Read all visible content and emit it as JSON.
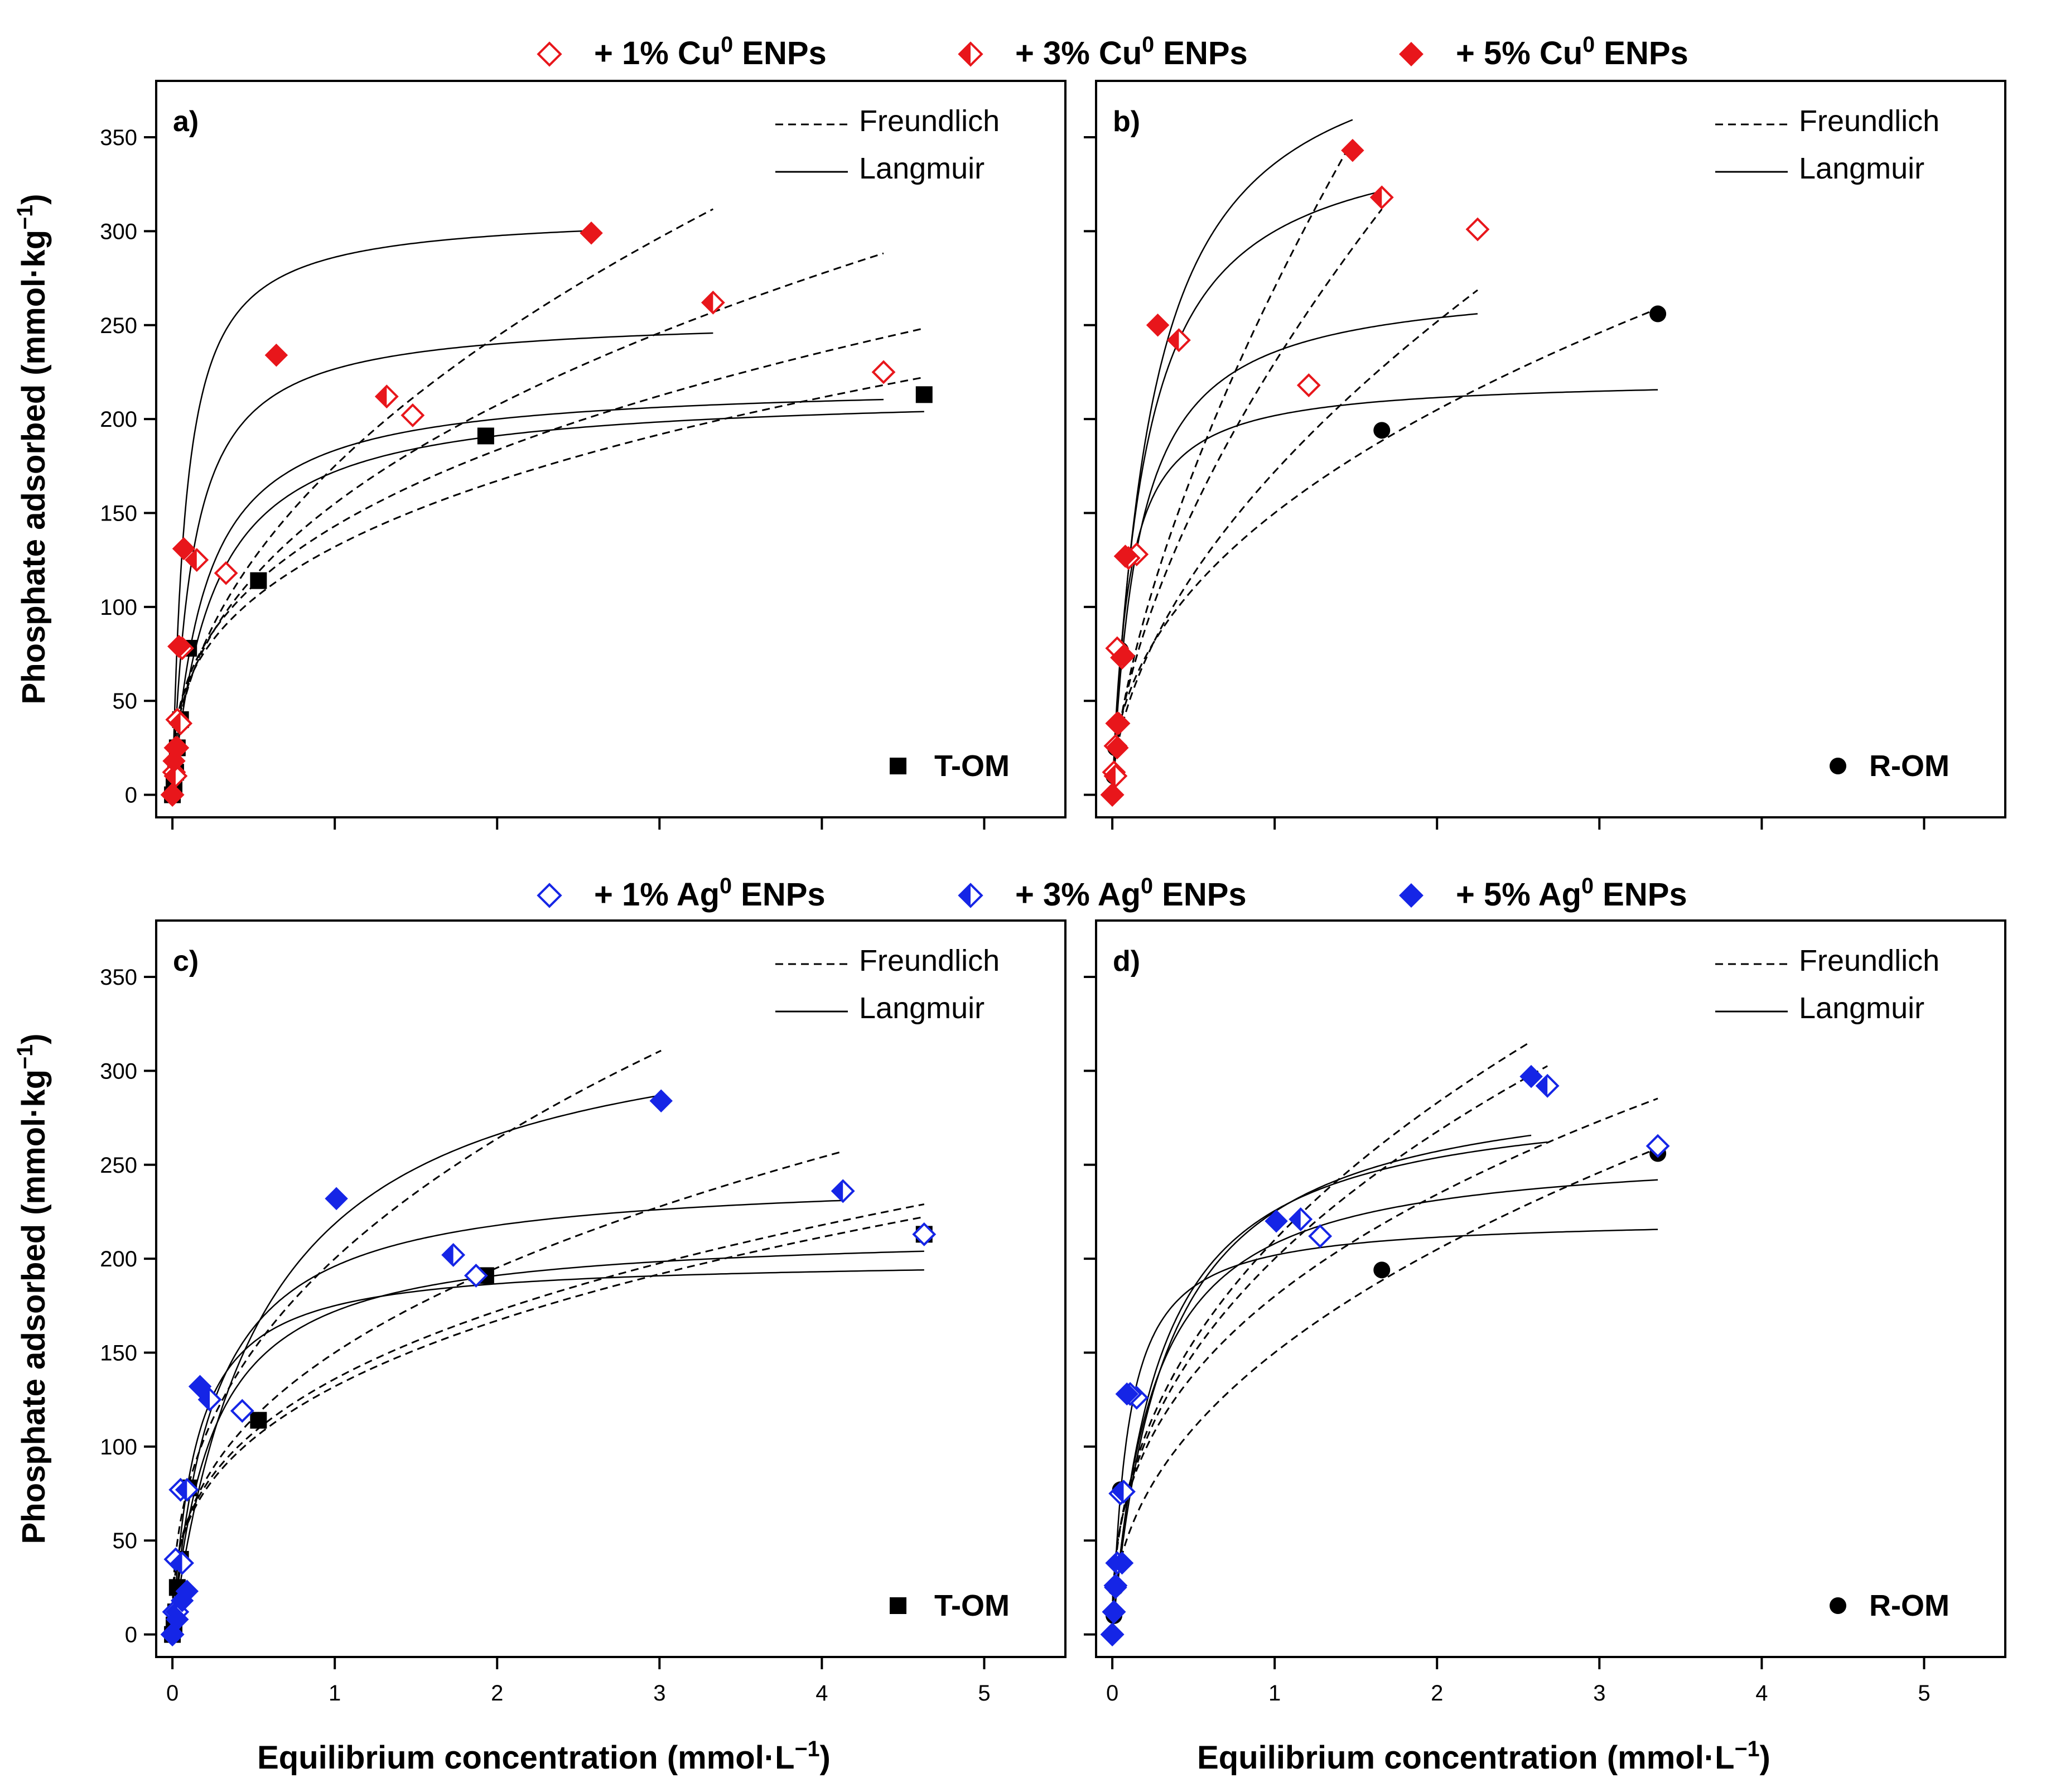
{
  "chart_data": [
    {
      "type": "scatter",
      "panel_label": "a)",
      "sample_label": "T-OM",
      "ylabel": "Phosphate adsorbed (mmol·kg",
      "ylabel_sup": "−1",
      "ylabel_close": ")",
      "xlabel": "",
      "xlim": [
        -0.1,
        5.5
      ],
      "ylim": [
        -12,
        380
      ],
      "xticks": [
        0,
        1,
        2,
        3,
        4,
        5
      ],
      "xtick_labels": [],
      "yticks": [
        0,
        50,
        100,
        150,
        200,
        250,
        300,
        350
      ],
      "ytick_labels": [
        "0",
        "50",
        "100",
        "150",
        "200",
        "250",
        "300",
        "350"
      ],
      "fit_legend": [
        {
          "name": "Freundlich",
          "style": "dashed"
        },
        {
          "name": "Langmuir",
          "style": "solid"
        }
      ],
      "series": [
        {
          "name": "T-OM",
          "marker": "square",
          "fill": "full",
          "color": "#000000",
          "x": [
            0.0,
            0.01,
            0.02,
            0.03,
            0.05,
            0.1,
            0.53,
            1.93,
            4.63
          ],
          "y": [
            0,
            5,
            12,
            25,
            40,
            78,
            114,
            191,
            213
          ],
          "freundlich": {
            "kf": 132,
            "n": 0.34,
            "xmax": 4.63
          },
          "langmuir": {
            "qmax": 215,
            "kl": 4.0,
            "xmax": 4.63
          }
        },
        {
          "name": "+ 1% Cu ENPs",
          "marker": "diamond",
          "fill": "none",
          "color": "#e8161b",
          "x": [
            0.0,
            0.01,
            0.02,
            0.03,
            0.06,
            0.33,
            1.48,
            4.38
          ],
          "y": [
            0,
            12,
            25,
            40,
            78,
            118,
            202,
            225
          ],
          "freundlich": {
            "kf": 143,
            "n": 0.36,
            "xmax": 4.63
          },
          "langmuir": {
            "qmax": 220,
            "kl": 5.0,
            "xmax": 4.38
          }
        },
        {
          "name": "+ 3% Cu ENPs",
          "marker": "diamond",
          "fill": "half",
          "color": "#e8161b",
          "x": [
            0.0,
            0.02,
            0.03,
            0.05,
            0.15,
            1.32,
            3.33
          ],
          "y": [
            0,
            10,
            25,
            38,
            125,
            212,
            262
          ],
          "freundlich": {
            "kf": 155,
            "n": 0.42,
            "xmax": 4.38
          },
          "langmuir": {
            "qmax": 255,
            "kl": 8.0,
            "xmax": 3.33
          }
        },
        {
          "name": "+ 5% Cu ENPs",
          "marker": "diamond",
          "fill": "full",
          "color": "#e8161b",
          "x": [
            0.0,
            0.01,
            0.02,
            0.04,
            0.07,
            0.64,
            2.58
          ],
          "y": [
            0,
            18,
            25,
            79,
            131,
            234,
            299
          ],
          "freundlich": {
            "kf": 175,
            "n": 0.48,
            "xmax": 3.33
          },
          "langmuir": {
            "qmax": 310,
            "kl": 12.0,
            "xmax": 2.58
          }
        }
      ]
    },
    {
      "type": "scatter",
      "panel_label": "b)",
      "sample_label": "R-OM",
      "ylabel": "",
      "xlabel": "",
      "xlim": [
        -0.1,
        5.5
      ],
      "ylim": [
        -12,
        380
      ],
      "xticks": [
        0,
        1,
        2,
        3,
        4,
        5
      ],
      "xtick_labels": [],
      "yticks": [
        0,
        50,
        100,
        150,
        200,
        250,
        300,
        350
      ],
      "ytick_labels": [],
      "fit_legend": [
        {
          "name": "Freundlich",
          "style": "dashed"
        },
        {
          "name": "Langmuir",
          "style": "solid"
        }
      ],
      "series": [
        {
          "name": "R-OM",
          "marker": "circle",
          "fill": "full",
          "color": "#000000",
          "x": [
            0.0,
            0.01,
            0.02,
            0.03,
            0.05,
            1.66,
            3.36
          ],
          "y": [
            0,
            10,
            25,
            38,
            77,
            194,
            256
          ],
          "freundlich": {
            "kf": 150,
            "n": 0.45,
            "xmax": 3.36
          },
          "langmuir": {
            "qmax": 222,
            "kl": 10.0,
            "xmax": 3.36
          }
        },
        {
          "name": "+ 1% Cu ENPs",
          "marker": "diamond",
          "fill": "none",
          "color": "#e8161b",
          "x": [
            0.0,
            0.01,
            0.02,
            0.03,
            0.15,
            1.21,
            2.25
          ],
          "y": [
            0,
            12,
            26,
            78,
            128,
            218,
            301
          ],
          "freundlich": {
            "kf": 172,
            "n": 0.55,
            "xmax": 2.25
          },
          "langmuir": {
            "qmax": 275,
            "kl": 6.0,
            "xmax": 2.25
          }
        },
        {
          "name": "+ 3% Cu ENPs",
          "marker": "diamond",
          "fill": "half",
          "color": "#e8161b",
          "x": [
            0.0,
            0.02,
            0.03,
            0.06,
            0.1,
            0.41,
            1.66
          ],
          "y": [
            0,
            10,
            38,
            73,
            126,
            242,
            318
          ],
          "freundlich": {
            "kf": 230,
            "n": 0.6,
            "xmax": 1.66
          },
          "langmuir": {
            "qmax": 360,
            "kl": 5.0,
            "xmax": 1.66
          }
        },
        {
          "name": "+ 5% Cu ENPs",
          "marker": "diamond",
          "fill": "full",
          "color": "#e8161b",
          "x": [
            0.0,
            0.03,
            0.04,
            0.07,
            0.08,
            0.28,
            1.48
          ],
          "y": [
            0,
            25,
            38,
            74,
            127,
            250,
            343
          ],
          "freundlich": {
            "kf": 270,
            "n": 0.65,
            "xmax": 1.48
          },
          "langmuir": {
            "qmax": 420,
            "kl": 4.0,
            "xmax": 1.48
          }
        }
      ]
    },
    {
      "type": "scatter",
      "panel_label": "c)",
      "sample_label": "T-OM",
      "ylabel": "Phosphate adsorbed (mmol·kg",
      "ylabel_sup": "−1",
      "ylabel_close": ")",
      "xlabel": "Equilibrium concentration (mmol·L",
      "xlabel_sup": "−1",
      "xlabel_close": ")",
      "xlim": [
        -0.1,
        5.5
      ],
      "ylim": [
        -12,
        380
      ],
      "xticks": [
        0,
        1,
        2,
        3,
        4,
        5
      ],
      "xtick_labels": [
        "0",
        "1",
        "2",
        "3",
        "4",
        "5"
      ],
      "yticks": [
        0,
        50,
        100,
        150,
        200,
        250,
        300,
        350
      ],
      "ytick_labels": [
        "0",
        "50",
        "100",
        "150",
        "200",
        "250",
        "300",
        "350"
      ],
      "fit_legend": [
        {
          "name": "Freundlich",
          "style": "dashed"
        },
        {
          "name": "Langmuir",
          "style": "solid"
        }
      ],
      "series": [
        {
          "name": "T-OM",
          "marker": "square",
          "fill": "full",
          "color": "#000000",
          "x": [
            0.0,
            0.01,
            0.02,
            0.03,
            0.05,
            0.1,
            0.53,
            1.93,
            4.63
          ],
          "y": [
            0,
            5,
            12,
            25,
            40,
            78,
            114,
            191,
            213
          ],
          "freundlich": {
            "kf": 132,
            "n": 0.34,
            "xmax": 4.63
          },
          "langmuir": {
            "qmax": 215,
            "kl": 4.0,
            "xmax": 4.63
          }
        },
        {
          "name": "+ 1% Ag ENPs",
          "marker": "diamond",
          "fill": "none",
          "color": "#1525e6",
          "x": [
            0.0,
            0.01,
            0.02,
            0.05,
            0.43,
            1.87,
            4.63
          ],
          "y": [
            0,
            12,
            40,
            77,
            119,
            191,
            213
          ],
          "freundlich": {
            "kf": 136,
            "n": 0.34,
            "xmax": 4.63
          },
          "langmuir": {
            "qmax": 200,
            "kl": 7.0,
            "xmax": 4.63
          }
        },
        {
          "name": "+ 3% Ag ENPs",
          "marker": "diamond",
          "fill": "half",
          "color": "#1525e6",
          "x": [
            0.0,
            0.03,
            0.06,
            0.09,
            0.23,
            1.73,
            4.13
          ],
          "y": [
            0,
            12,
            38,
            77,
            125,
            202,
            236
          ],
          "freundlich": {
            "kf": 150,
            "n": 0.38,
            "xmax": 4.13
          },
          "langmuir": {
            "qmax": 245,
            "kl": 4.0,
            "xmax": 4.13
          }
        },
        {
          "name": "+ 5% Ag ENPs",
          "marker": "diamond",
          "fill": "full",
          "color": "#1525e6",
          "x": [
            0.0,
            0.03,
            0.06,
            0.09,
            0.17,
            1.01,
            3.01
          ],
          "y": [
            0,
            8,
            18,
            23,
            132,
            232,
            284
          ],
          "freundlich": {
            "kf": 200,
            "n": 0.4,
            "xmax": 3.01
          },
          "langmuir": {
            "qmax": 340,
            "kl": 1.8,
            "xmax": 3.01
          }
        }
      ]
    },
    {
      "type": "scatter",
      "panel_label": "d)",
      "sample_label": "R-OM",
      "ylabel": "",
      "xlabel": "Equilibrium concentration (mmol·L",
      "xlabel_sup": "−1",
      "xlabel_close": ")",
      "xlim": [
        -0.1,
        5.5
      ],
      "ylim": [
        -12,
        380
      ],
      "xticks": [
        0,
        1,
        2,
        3,
        4,
        5
      ],
      "xtick_labels": [
        "0",
        "1",
        "2",
        "3",
        "4",
        "5"
      ],
      "yticks": [
        0,
        50,
        100,
        150,
        200,
        250,
        300,
        350
      ],
      "ytick_labels": [],
      "fit_legend": [
        {
          "name": "Freundlich",
          "style": "dashed"
        },
        {
          "name": "Langmuir",
          "style": "solid"
        }
      ],
      "series": [
        {
          "name": "R-OM",
          "marker": "circle",
          "fill": "full",
          "color": "#000000",
          "x": [
            0.0,
            0.01,
            0.02,
            0.03,
            0.05,
            1.66,
            3.36
          ],
          "y": [
            0,
            10,
            25,
            38,
            77,
            194,
            256
          ],
          "freundlich": {
            "kf": 150,
            "n": 0.45,
            "xmax": 3.36
          },
          "langmuir": {
            "qmax": 222,
            "kl": 10.0,
            "xmax": 3.36
          }
        },
        {
          "name": "+ 1% Ag ENPs",
          "marker": "diamond",
          "fill": "none",
          "color": "#1525e6",
          "x": [
            0.0,
            0.01,
            0.02,
            0.05,
            0.15,
            1.28,
            3.36
          ],
          "y": [
            0,
            12,
            26,
            75,
            126,
            212,
            260
          ],
          "freundlich": {
            "kf": 180,
            "n": 0.38,
            "xmax": 3.36
          },
          "langmuir": {
            "qmax": 260,
            "kl": 4.0,
            "xmax": 3.36
          }
        },
        {
          "name": "+ 3% Ag ENPs",
          "marker": "diamond",
          "fill": "half",
          "color": "#1525e6",
          "x": [
            0.0,
            0.01,
            0.03,
            0.07,
            0.11,
            1.16,
            2.68
          ],
          "y": [
            0,
            12,
            38,
            76,
            128,
            221,
            292
          ],
          "freundlich": {
            "kf": 200,
            "n": 0.42,
            "xmax": 2.68
          },
          "langmuir": {
            "qmax": 290,
            "kl": 3.5,
            "xmax": 2.68
          }
        },
        {
          "name": "+ 5% Ag ENPs",
          "marker": "diamond",
          "fill": "full",
          "color": "#1525e6",
          "x": [
            0.0,
            0.01,
            0.02,
            0.06,
            0.09,
            1.01,
            2.58
          ],
          "y": [
            0,
            12,
            25,
            38,
            128,
            220,
            297
          ],
          "freundlich": {
            "kf": 210,
            "n": 0.43,
            "xmax": 2.58
          },
          "langmuir": {
            "qmax": 300,
            "kl": 3.0,
            "xmax": 2.58
          }
        }
      ]
    }
  ],
  "legend_cu": [
    {
      "prefix": "+  1% Cu",
      "sup": "0",
      "suffix": " ENPs",
      "fill": "none",
      "color": "#e8161b"
    },
    {
      "prefix": "+  3% Cu",
      "sup": "0",
      "suffix": " ENPs",
      "fill": "half",
      "color": "#e8161b"
    },
    {
      "prefix": "+  5% Cu",
      "sup": "0",
      "suffix": " ENPs",
      "fill": "full",
      "color": "#e8161b"
    }
  ],
  "legend_ag": [
    {
      "prefix": "+  1% Ag",
      "sup": "0",
      "suffix": " ENPs",
      "fill": "none",
      "color": "#1525e6"
    },
    {
      "prefix": "+  3% Ag",
      "sup": "0",
      "suffix": " ENPs",
      "fill": "half",
      "color": "#1525e6"
    },
    {
      "prefix": "+  5% Ag",
      "sup": "0",
      "suffix": " ENPs",
      "fill": "full",
      "color": "#1525e6"
    }
  ]
}
